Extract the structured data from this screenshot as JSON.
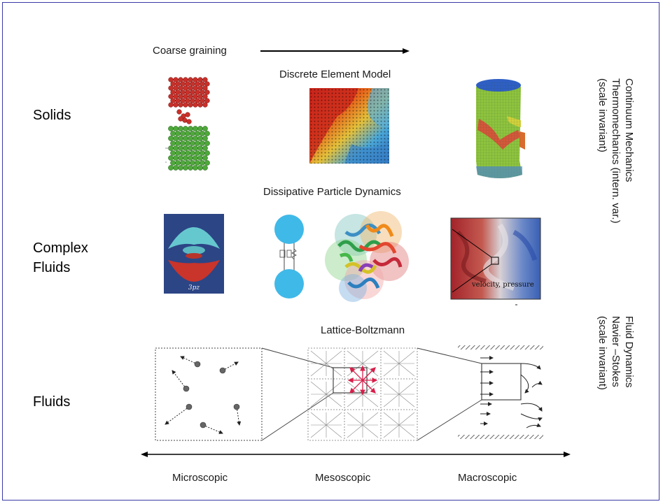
{
  "coarse": {
    "label": "Coarse graining"
  },
  "rows": {
    "solids": "Solids",
    "complex_line1": "Complex",
    "complex_line2": "Fluids",
    "fluids": "Fluids"
  },
  "methods": {
    "dem": "Discrete Element Model",
    "dpd": "Dissipative Particle  Dynamics",
    "lb": "Lattice-Boltzmann"
  },
  "right": {
    "continuum": [
      "Continuum Mechanics",
      "Thermomechanics (intern. var.)",
      "(scale invariant)"
    ],
    "fluid": [
      "Fluid Dynamics",
      "Navier –Stokes",
      "(scale invariant)"
    ]
  },
  "scales": {
    "micro": "Microscopic",
    "meso": "Mesoscopic",
    "macro": "Macroscopic"
  },
  "image_text": {
    "orbital": "3pz",
    "flow": "velocity, pressure"
  }
}
